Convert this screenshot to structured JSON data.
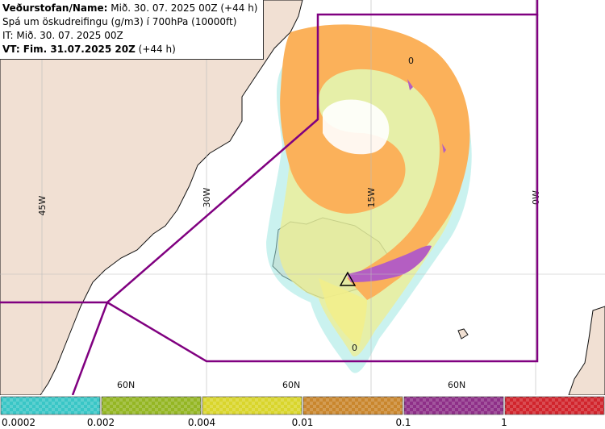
{
  "info": {
    "issuer_label": "Veðurstofan/Name:",
    "issuer_value": "Mið. 30. 07. 2025 00Z (+44 h)",
    "product": "Spá um öskudreifingu (g/m3) í 700hPa (10000ft)",
    "initial_time": "IT: Mið. 30. 07. 2025 00Z",
    "valid_label": "VT: Fim. 31.07.2025 20Z",
    "valid_value": "(+44 h)"
  },
  "graticule": {
    "meridians": [
      "45W",
      "30W",
      "15W",
      "0W"
    ],
    "parallels": [
      "60N",
      "60N",
      "60N"
    ]
  },
  "colors": {
    "land": "#f1e0d3",
    "sea": "#ffffff",
    "coast": "#111111",
    "fir_boundary": "#800080",
    "ash_low": "#9fe7e2",
    "ash_mid": "#f2ee8a",
    "ash_high": "#fbb15a",
    "ash_top": "#b45ec2"
  },
  "legend": {
    "bins": [
      {
        "color": "#39c6c6",
        "label": "0.0002"
      },
      {
        "color": "#94b623",
        "label": "0.002"
      },
      {
        "color": "#d9d52b",
        "label": "0.004"
      },
      {
        "color": "#c9862d",
        "label": "0.01"
      },
      {
        "color": "#8e2f88",
        "label": "0.1"
      },
      {
        "color": "#d1242c",
        "label": "1"
      }
    ]
  },
  "markers": {
    "volcano": "triangle-icon",
    "zero_labels": [
      "0",
      "0"
    ]
  }
}
